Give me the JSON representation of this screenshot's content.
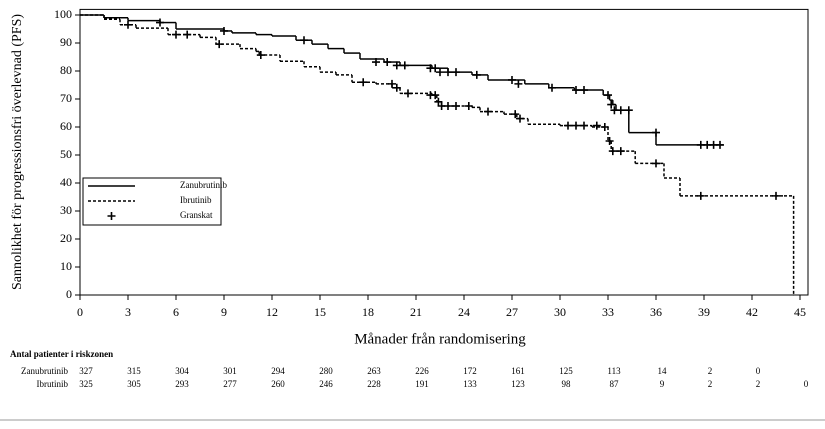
{
  "chart_data": {
    "type": "kaplan-meier",
    "x_label": "Månader från randomisering",
    "y_label": "Sannolikhet för progressionsfri överlevnad (PFS)",
    "xlim": [
      0,
      45.5
    ],
    "ylim": [
      0,
      102
    ],
    "xticks": [
      0,
      3,
      6,
      9,
      12,
      15,
      18,
      21,
      24,
      27,
      30,
      33,
      36,
      39,
      42,
      45
    ],
    "yticks": [
      0,
      10,
      20,
      30,
      40,
      50,
      60,
      70,
      80,
      90,
      100
    ],
    "censor_name": "Granskat",
    "series": [
      {
        "name": "Zanubrutinib",
        "color": "#000000",
        "dash": "solid",
        "x": [
          0,
          1.5,
          3,
          5,
          6,
          9,
          9.5,
          11,
          12,
          13.5,
          14.5,
          15.5,
          16.5,
          17.5,
          19,
          20,
          22,
          23,
          24.5,
          25.5,
          27.8,
          29.3,
          30.9,
          32.7,
          33.1,
          33.3,
          33.5,
          34.3,
          36,
          40.2
        ],
        "values": [
          100,
          99,
          98,
          97.3,
          95,
          94.3,
          93.6,
          93,
          92.5,
          91,
          89.6,
          88,
          86.4,
          84.3,
          83.2,
          82,
          81,
          79.6,
          78.6,
          76.8,
          75.4,
          74,
          73.2,
          71.4,
          69.6,
          68,
          66,
          58,
          53.6,
          53.6
        ],
        "censored": {
          "x": [
            5,
            9,
            14,
            18.5,
            19.2,
            19.8,
            20.3,
            21.9,
            22.2,
            22.5,
            23,
            23.5,
            24.8,
            27,
            27.4,
            29.5,
            31,
            31.5,
            33,
            33.2,
            33.4,
            33.8,
            34.3,
            36,
            38.8,
            39.2,
            39.6,
            40
          ],
          "values": [
            97.3,
            94.3,
            91,
            83.2,
            83.2,
            82,
            82,
            81,
            81,
            79.6,
            79.6,
            79.6,
            78.6,
            76.8,
            75.4,
            74,
            73.2,
            73.2,
            71.4,
            68,
            66,
            66,
            66,
            58,
            53.6,
            53.6,
            53.6,
            53.6
          ]
        }
      },
      {
        "name": "Ibrutinib",
        "color": "#000000",
        "dash": "dashed",
        "x": [
          0,
          1.5,
          2.5,
          3.5,
          5.5,
          7.5,
          8.5,
          10,
          11,
          11.2,
          12.5,
          14,
          15,
          16,
          17,
          18.5,
          19.5,
          20,
          22,
          22.3,
          22.6,
          24.5,
          25,
          26.5,
          27.3,
          28,
          30,
          32,
          33,
          33.2,
          34.7,
          36.5,
          37.5,
          44,
          44.6
        ],
        "values": [
          100,
          98.5,
          96.5,
          95.3,
          93,
          92,
          89.6,
          88,
          87,
          85.7,
          83.5,
          81.5,
          79.6,
          78.6,
          76,
          75.4,
          74,
          72,
          71.4,
          69,
          67.5,
          67,
          65.5,
          64.6,
          63,
          61,
          60.5,
          60,
          55,
          51.4,
          47,
          41.8,
          35.4,
          35.4,
          0
        ],
        "censored": {
          "x": [
            3,
            6,
            6.7,
            8.7,
            11.3,
            17.7,
            19.5,
            19.8,
            20.5,
            21.9,
            22.2,
            22.4,
            22.6,
            23,
            23.5,
            24.3,
            25.5,
            27.2,
            27.5,
            30.5,
            31,
            31.5,
            32.3,
            32.8,
            33.1,
            33.3,
            33.8,
            36,
            38.8,
            43.5
          ],
          "values": [
            96.5,
            93,
            93,
            89.6,
            85.7,
            76,
            75.4,
            74,
            72,
            71.4,
            71.4,
            69,
            67.5,
            67.5,
            67.5,
            67.5,
            65.5,
            64.6,
            63,
            60.5,
            60.5,
            60.5,
            60.5,
            60,
            55,
            51.4,
            51.4,
            47,
            35.4,
            35.4
          ]
        }
      }
    ],
    "risk_table": {
      "title": "Antal patienter i riskzonen",
      "rows": [
        {
          "name": "Zanubrutinib",
          "values": [
            327,
            315,
            304,
            301,
            294,
            280,
            263,
            226,
            172,
            161,
            125,
            113,
            14,
            2,
            0
          ]
        },
        {
          "name": "Ibrutinib",
          "values": [
            325,
            305,
            293,
            277,
            260,
            246,
            228,
            191,
            133,
            123,
            98,
            87,
            9,
            2,
            2,
            0
          ]
        }
      ]
    }
  }
}
